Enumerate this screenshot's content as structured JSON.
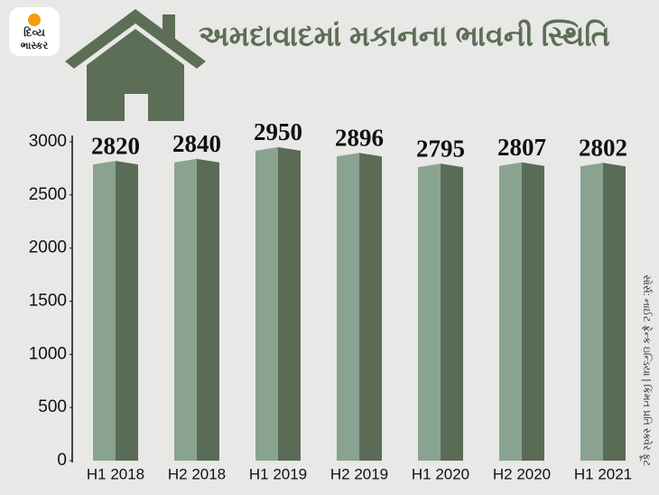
{
  "logo": {
    "line1": "દિવ્ય",
    "line2": "ભાસ્કર"
  },
  "source": "સોર્સ: નાઈટ ફ્રેન્ક ઇન્ડિયા | કિંમત પ્રતિ સ્ક્વેર ફૂટ",
  "chart_data": {
    "type": "bar",
    "title": "અમદાવાદમાં મકાનના ભાવની સ્થિતિ",
    "categories": [
      "H1 2018",
      "H2 2018",
      "H1 2019",
      "H2 2019",
      "H1 2020",
      "H2 2020",
      "H1 2021"
    ],
    "values": [
      2820,
      2840,
      2950,
      2896,
      2795,
      2807,
      2802
    ],
    "colors": {
      "front": "#8aa391",
      "side": "#5b6c56"
    },
    "ylim": [
      0,
      3000
    ],
    "yticks": [
      0,
      500,
      1000,
      1500,
      2000,
      2500,
      3000
    ]
  }
}
